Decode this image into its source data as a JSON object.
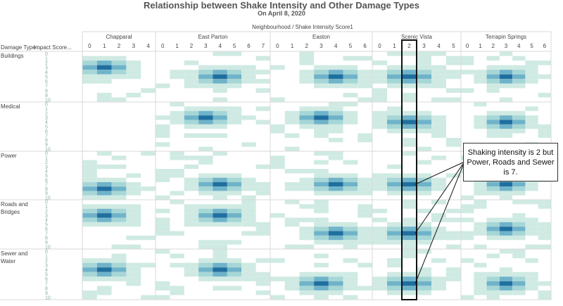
{
  "chart_data": {
    "type": "heatmap",
    "title": "Relationship between Shake Intensity and Other Damage Types",
    "subtitle": "On April 8, 2020",
    "column_header": "Neighbourhood / Shake Intensity Score1",
    "row_header_1": "Damage Type ...",
    "row_header_2": "Impact Score...",
    "colors": {
      "low": "#cfeae3",
      "mid": "#6fb3c9",
      "high": "#1f6f9f",
      "grid": "#d9d9d9",
      "highlight": "#111111"
    },
    "neighbourhoods": [
      {
        "name": "Chapparal",
        "shake_scores": [
          0,
          1,
          2,
          3,
          4
        ]
      },
      {
        "name": "East Parton",
        "shake_scores": [
          0,
          1,
          2,
          3,
          4,
          5,
          6,
          7
        ]
      },
      {
        "name": "Easton",
        "shake_scores": [
          0,
          1,
          2,
          3,
          4,
          5,
          6
        ]
      },
      {
        "name": "Scenic Vista",
        "shake_scores": [
          0,
          1,
          2,
          3,
          4,
          5
        ]
      },
      {
        "name": "Terrapin Springs",
        "shake_scores": [
          0,
          1,
          2,
          3,
          4,
          5,
          6
        ]
      }
    ],
    "damage_types": [
      {
        "name": "Buildings",
        "lines": [
          "Buildings"
        ]
      },
      {
        "name": "Medical",
        "lines": [
          "Medical"
        ]
      },
      {
        "name": "Power",
        "lines": [
          "Power"
        ]
      },
      {
        "name": "Roads and Bridges",
        "lines": [
          "Roads and",
          "Bridges"
        ]
      },
      {
        "name": "Sewer and Water",
        "lines": [
          "Sewer and",
          "Water"
        ]
      }
    ],
    "impact_score_ticks": [
      "0",
      "1",
      "2",
      "3",
      "4",
      "5",
      "6",
      "7",
      "8",
      "9",
      "10"
    ],
    "peaks": {
      "Buildings": {
        "Chapparal": [
          1,
          3
        ],
        "East Parton": [
          4,
          5
        ],
        "Easton": [
          4,
          5
        ],
        "Scenic Vista": [
          2,
          5
        ],
        "Terrapin Springs": [
          3,
          5
        ]
      },
      "Medical": {
        "Chapparal": null,
        "East Parton": [
          3,
          3
        ],
        "Easton": [
          3,
          3
        ],
        "Scenic Vista": [
          2,
          4
        ],
        "Terrapin Springs": [
          3,
          4
        ]
      },
      "Power": {
        "Chapparal": [
          1,
          8
        ],
        "East Parton": [
          4,
          7
        ],
        "Easton": [
          4,
          7
        ],
        "Scenic Vista": [
          2,
          7
        ],
        "Terrapin Springs": [
          3,
          7
        ]
      },
      "Roads and Bridges": {
        "Chapparal": [
          1,
          3
        ],
        "East Parton": [
          4,
          3
        ],
        "Easton": [
          4,
          7
        ],
        "Scenic Vista": [
          2,
          7
        ],
        "Terrapin Springs": [
          3,
          6
        ]
      },
      "Sewer and Water": {
        "Chapparal": [
          1,
          4
        ],
        "East Parton": [
          4,
          4
        ],
        "Easton": [
          3,
          7
        ],
        "Scenic Vista": [
          2,
          7
        ],
        "Terrapin Springs": [
          3,
          7
        ]
      }
    },
    "highlight": {
      "neighbourhood": "Scenic Vista",
      "shake_score": 2
    },
    "annotation": "Shaking intensity is 2 but Power, Roads and Sewer is 7."
  }
}
